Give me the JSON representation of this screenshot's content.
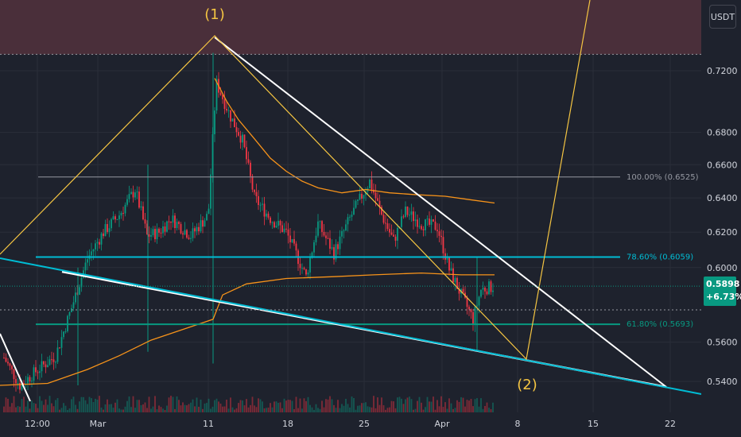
{
  "chart_data": {
    "type": "candlestick",
    "symbol_quote": "USDT",
    "last_price": "0.5898",
    "change_pct": "+6.73%",
    "y_ticks": [
      "0.7200",
      "0.6800",
      "0.6600",
      "0.6400",
      "0.6200",
      "0.6000",
      "0.5600",
      "0.5400"
    ],
    "x_ticks": [
      "12:00",
      "Mar",
      "11",
      "18",
      "25",
      "Apr",
      "8",
      "15",
      "22"
    ],
    "fib_levels": [
      {
        "label": "100.00% (0.6525)",
        "price": 0.6525,
        "color": "#9598a1"
      },
      {
        "label": "78.60% (0.6059)",
        "price": 0.6059,
        "color": "#00bcd4"
      },
      {
        "label": "61.80% (0.5693)",
        "price": 0.5693,
        "color": "#089981"
      }
    ],
    "wave_labels": [
      {
        "text": "(1)",
        "price": 0.735
      },
      {
        "text": "(2)",
        "price": 0.541
      }
    ],
    "resistance_zone_from_price": 0.731,
    "colors": {
      "up": "#089981",
      "down": "#f23645",
      "ma_fast": "#f7931a",
      "ma_slow": "#f7931a",
      "wave": "#f5c542",
      "trend_upper": "#ffffff",
      "trend_lower": "#ffffff",
      "support_line": "#00bcd4",
      "zone": "#4a2f3a"
    }
  }
}
